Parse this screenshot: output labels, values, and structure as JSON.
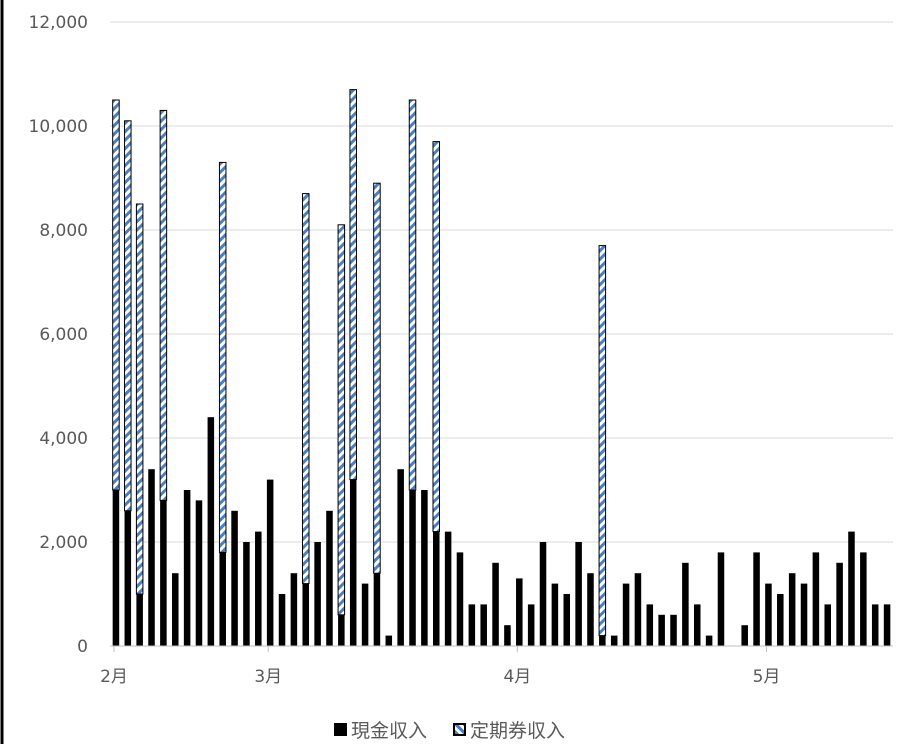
{
  "chart_data": {
    "type": "bar",
    "stacked": true,
    "title": "",
    "xlabel": "",
    "ylabel": "",
    "ylim": [
      0,
      12000
    ],
    "yticks": [
      "0",
      "2,000",
      "4,000",
      "6,000",
      "8,000",
      "10,000",
      "12,000"
    ],
    "month_labels": [
      "2月",
      "3月",
      "4月",
      "5月"
    ],
    "month_start_bar": [
      0,
      13,
      34,
      55
    ],
    "grid": true,
    "legend_position": "bottom",
    "series": [
      {
        "name": "現金収入",
        "color": "#000000",
        "values": [
          3000,
          2600,
          1000,
          3400,
          2800,
          1400,
          3000,
          2800,
          4400,
          1800,
          2600,
          2000,
          2200,
          3200,
          1000,
          1400,
          1200,
          2000,
          2600,
          600,
          3200,
          1200,
          1400,
          200,
          3400,
          3000,
          3000,
          2200,
          2200,
          1800,
          800,
          800,
          1600,
          400,
          1300,
          800,
          2000,
          1200,
          1000,
          2000,
          1400,
          200,
          200,
          1200,
          1400,
          800,
          600,
          600,
          1600,
          800,
          200,
          1800,
          0,
          400,
          1800,
          1200,
          1000,
          1400,
          1200,
          1800,
          800,
          1600,
          2200,
          1800,
          800,
          800
        ]
      },
      {
        "name": "定期券収入",
        "color": "#4a7fc0",
        "values": [
          7500,
          7500,
          7500,
          0,
          7500,
          0,
          0,
          0,
          0,
          7500,
          0,
          0,
          0,
          0,
          0,
          0,
          7500,
          0,
          0,
          7500,
          7500,
          0,
          7500,
          0,
          0,
          7500,
          0,
          7500,
          0,
          0,
          0,
          0,
          0,
          0,
          0,
          0,
          0,
          0,
          0,
          0,
          0,
          7500,
          0,
          0,
          0,
          0,
          0,
          0,
          0,
          0,
          0,
          0,
          0,
          0,
          0,
          0,
          0,
          0,
          0,
          0,
          0,
          0,
          0,
          0,
          0,
          0
        ]
      }
    ]
  }
}
